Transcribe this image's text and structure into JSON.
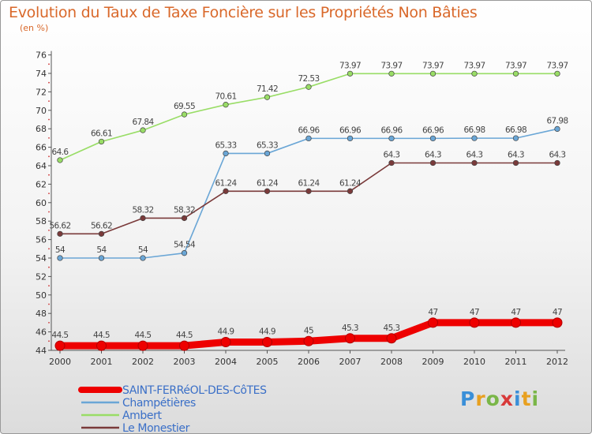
{
  "title": "Evolution du Taux de Taxe Foncière sur les Propriétés Non Bâties",
  "unit": "(en %)",
  "logo": "Proxiti",
  "chart_data": {
    "type": "line",
    "title": "Evolution du Taux de Taxe Foncière sur les Propriétés Non Bâties",
    "ylabel": "(en %)",
    "xlabel": "",
    "categories": [
      "2000",
      "2001",
      "2002",
      "2003",
      "2004",
      "2005",
      "2006",
      "2007",
      "2008",
      "2009",
      "2010",
      "2011",
      "2012"
    ],
    "ylim": [
      44,
      76
    ],
    "yticks": [
      44,
      46,
      48,
      50,
      52,
      54,
      56,
      58,
      60,
      62,
      64,
      66,
      68,
      70,
      72,
      74,
      76
    ],
    "grid": false,
    "legend_position": "bottom-left",
    "series": [
      {
        "name": "SAINT-FERRéOL-DES-CôTES",
        "color": "#ee0000",
        "values": [
          44.5,
          44.5,
          44.5,
          44.5,
          44.9,
          44.9,
          45,
          45.3,
          45.3,
          47,
          47,
          47,
          47
        ],
        "labels": [
          "44.5",
          "44.5",
          "44.5",
          "44.5",
          "44.9",
          "44.9",
          "45",
          "45.3",
          "45.3",
          "47",
          "47",
          "47",
          "47"
        ]
      },
      {
        "name": "Champétières",
        "color": "#6aa6d6",
        "values": [
          54,
          54,
          54,
          54.54,
          65.33,
          65.33,
          66.96,
          66.96,
          66.96,
          66.96,
          66.98,
          66.98,
          67.98
        ],
        "labels": [
          "54",
          "54",
          "54",
          "54.54",
          "65.33",
          "65.33",
          "66.96",
          "66.96",
          "66.96",
          "66.96",
          "66.98",
          "66.98",
          "67.98"
        ]
      },
      {
        "name": "Ambert",
        "color": "#99dd66",
        "values": [
          64.6,
          66.61,
          67.84,
          69.55,
          70.61,
          71.42,
          72.53,
          73.97,
          73.97,
          73.97,
          73.97,
          73.97,
          73.97
        ],
        "labels": [
          "64.6",
          "66.61",
          "67.84",
          "69.55",
          "70.61",
          "71.42",
          "72.53",
          "73.97",
          "73.97",
          "73.97",
          "73.97",
          "73.97",
          "73.97"
        ]
      },
      {
        "name": "Le Monestier",
        "color": "#7a3a3a",
        "values": [
          56.62,
          56.62,
          58.32,
          58.32,
          61.24,
          61.24,
          61.24,
          61.24,
          64.3,
          64.3,
          64.3,
          64.3,
          64.3
        ],
        "labels": [
          "56.62",
          "56.62",
          "58.32",
          "58.32",
          "61.24",
          "61.24",
          "61.24",
          "61.24",
          "64.3",
          "64.3",
          "64.3",
          "64.3",
          "64.3"
        ]
      }
    ]
  }
}
